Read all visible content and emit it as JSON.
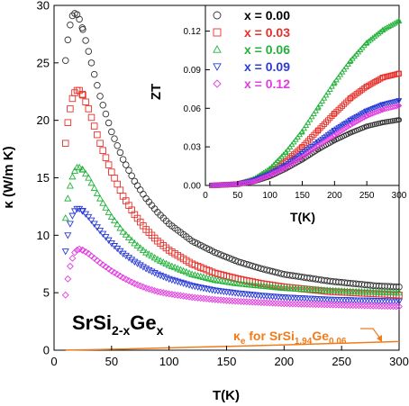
{
  "chart_data": [
    {
      "id": "main",
      "type": "scatter",
      "xlabel": "T(K)",
      "ylabel": "κ (W/m K)",
      "xlim": [
        0,
        300
      ],
      "ylim": [
        0,
        30
      ],
      "xticks": [
        "0",
        "50",
        "100",
        "150",
        "200",
        "250",
        "300"
      ],
      "yticks": [
        "0",
        "5",
        "10",
        "15",
        "20",
        "25",
        "30"
      ],
      "grid": false,
      "compound_label": {
        "base": "SrSi",
        "sub": "2-x",
        "mid": "Ge",
        "sub2": "x"
      },
      "series": [
        {
          "x_label": "x = 0.00",
          "color": "#333333",
          "marker": "circle",
          "points": [
            [
              10,
              25.2
            ],
            [
              12,
              27
            ],
            [
              14,
              28.3
            ],
            [
              16,
              29.1
            ],
            [
              18,
              29.3
            ],
            [
              20,
              29.2
            ],
            [
              22,
              28.8
            ],
            [
              25,
              27.9
            ],
            [
              30,
              26.0
            ],
            [
              35,
              24.0
            ],
            [
              40,
              22.1
            ],
            [
              50,
              19.0
            ],
            [
              60,
              16.6
            ],
            [
              70,
              14.7
            ],
            [
              80,
              13.2
            ],
            [
              90,
              12.0
            ],
            [
              100,
              11.0
            ],
            [
              120,
              9.5
            ],
            [
              140,
              8.5
            ],
            [
              160,
              7.7
            ],
            [
              180,
              7.1
            ],
            [
              200,
              6.6
            ],
            [
              220,
              6.3
            ],
            [
              240,
              6.0
            ],
            [
              260,
              5.8
            ],
            [
              280,
              5.6
            ],
            [
              300,
              5.5
            ]
          ]
        },
        {
          "x_label": "x = 0.03",
          "color": "#e8302a",
          "marker": "square",
          "points": [
            [
              10,
              18.0
            ],
            [
              12,
              19.8
            ],
            [
              14,
              21.0
            ],
            [
              16,
              21.9
            ],
            [
              18,
              22.4
            ],
            [
              20,
              22.6
            ],
            [
              22,
              22.6
            ],
            [
              25,
              22.2
            ],
            [
              30,
              21.0
            ],
            [
              35,
              19.5
            ],
            [
              40,
              18.0
            ],
            [
              50,
              15.5
            ],
            [
              60,
              13.4
            ],
            [
              70,
              11.8
            ],
            [
              80,
              10.5
            ],
            [
              90,
              9.5
            ],
            [
              100,
              8.7
            ],
            [
              120,
              7.5
            ],
            [
              140,
              6.7
            ],
            [
              160,
              6.2
            ],
            [
              180,
              5.8
            ],
            [
              200,
              5.5
            ],
            [
              220,
              5.3
            ],
            [
              240,
              5.1
            ],
            [
              260,
              5.0
            ],
            [
              280,
              4.9
            ],
            [
              300,
              4.8
            ]
          ]
        },
        {
          "x_label": "x = 0.06",
          "color": "#22b23a",
          "marker": "triangle-up",
          "points": [
            [
              10,
              11.5
            ],
            [
              12,
              13.2
            ],
            [
              14,
              14.3
            ],
            [
              16,
              15.1
            ],
            [
              18,
              15.6
            ],
            [
              20,
              15.9
            ],
            [
              22,
              15.9
            ],
            [
              25,
              15.7
            ],
            [
              30,
              15.0
            ],
            [
              35,
              14.1
            ],
            [
              40,
              13.2
            ],
            [
              50,
              11.6
            ],
            [
              60,
              10.3
            ],
            [
              70,
              9.3
            ],
            [
              80,
              8.5
            ],
            [
              90,
              7.9
            ],
            [
              100,
              7.4
            ],
            [
              120,
              6.6
            ],
            [
              140,
              6.1
            ],
            [
              160,
              5.8
            ],
            [
              180,
              5.6
            ],
            [
              200,
              5.4
            ],
            [
              220,
              5.3
            ],
            [
              240,
              5.2
            ],
            [
              260,
              5.1
            ],
            [
              280,
              5.05
            ],
            [
              300,
              5.0
            ]
          ]
        },
        {
          "x_label": "x = 0.09",
          "color": "#2a3bd6",
          "marker": "triangle-down",
          "points": [
            [
              10,
              8.6
            ],
            [
              12,
              10.0
            ],
            [
              14,
              11.0
            ],
            [
              16,
              11.7
            ],
            [
              18,
              12.1
            ],
            [
              20,
              12.3
            ],
            [
              22,
              12.3
            ],
            [
              25,
              12.1
            ],
            [
              30,
              11.6
            ],
            [
              35,
              11.0
            ],
            [
              40,
              10.4
            ],
            [
              50,
              9.3
            ],
            [
              60,
              8.4
            ],
            [
              70,
              7.7
            ],
            [
              80,
              7.1
            ],
            [
              90,
              6.6
            ],
            [
              100,
              6.2
            ],
            [
              120,
              5.6
            ],
            [
              140,
              5.2
            ],
            [
              160,
              4.95
            ],
            [
              180,
              4.75
            ],
            [
              200,
              4.6
            ],
            [
              220,
              4.5
            ],
            [
              240,
              4.4
            ],
            [
              260,
              4.35
            ],
            [
              280,
              4.3
            ],
            [
              300,
              4.25
            ]
          ]
        },
        {
          "x_label": "x = 0.12",
          "color": "#e23be0",
          "marker": "diamond",
          "points": [
            [
              10,
              4.8
            ],
            [
              12,
              6.2
            ],
            [
              14,
              7.3
            ],
            [
              16,
              8.0
            ],
            [
              18,
              8.5
            ],
            [
              20,
              8.7
            ],
            [
              22,
              8.8
            ],
            [
              25,
              8.7
            ],
            [
              30,
              8.4
            ],
            [
              35,
              8.0
            ],
            [
              40,
              7.6
            ],
            [
              50,
              6.9
            ],
            [
              60,
              6.3
            ],
            [
              70,
              5.8
            ],
            [
              80,
              5.4
            ],
            [
              90,
              5.1
            ],
            [
              100,
              4.9
            ],
            [
              120,
              4.6
            ],
            [
              140,
              4.4
            ],
            [
              160,
              4.25
            ],
            [
              180,
              4.15
            ],
            [
              200,
              4.05
            ],
            [
              220,
              4.0
            ],
            [
              240,
              3.95
            ],
            [
              260,
              3.9
            ],
            [
              280,
              3.85
            ],
            [
              300,
              3.8
            ]
          ]
        }
      ],
      "ke_curve": {
        "label_prefix": "κ",
        "label_prefix_sub": "e",
        "label_mid": " for SrSi",
        "label_sub1": "1.94",
        "label_mid2": "Ge",
        "label_sub2": "0.06",
        "color": "#f07c1c",
        "points": [
          [
            10,
            0.01
          ],
          [
            30,
            0.04
          ],
          [
            60,
            0.1
          ],
          [
            100,
            0.2
          ],
          [
            150,
            0.33
          ],
          [
            200,
            0.46
          ],
          [
            250,
            0.6
          ],
          [
            300,
            0.75
          ]
        ]
      }
    },
    {
      "id": "inset",
      "type": "scatter",
      "xlabel": "T(K)",
      "ylabel": "ZT",
      "xlim": [
        0,
        300
      ],
      "ylim": [
        0,
        0.14
      ],
      "xticks": [
        "0",
        "50",
        "100",
        "150",
        "200",
        "250",
        "300"
      ],
      "yticks": [
        "0.00",
        "0.03",
        "0.06",
        "0.09",
        "0.12"
      ],
      "grid": false,
      "legend": {
        "placement": "top-left",
        "entries": [
          {
            "label": "x = 0.00",
            "color": "#000000",
            "marker_color": "#333333",
            "marker": "circle"
          },
          {
            "label": "x = 0.03",
            "color": "#e8302a",
            "marker_color": "#e8302a",
            "marker": "square"
          },
          {
            "label": "x = 0.06",
            "color": "#22b23a",
            "marker_color": "#22b23a",
            "marker": "triangle-up"
          },
          {
            "label": "x = 0.09",
            "color": "#2a3bd6",
            "marker_color": "#2a3bd6",
            "marker": "triangle-down"
          },
          {
            "label": "x = 0.12",
            "color": "#e23be0",
            "marker_color": "#e23be0",
            "marker": "diamond"
          }
        ]
      },
      "series": [
        {
          "x_label": "x = 0.00",
          "color": "#333333",
          "marker": "circle",
          "points": [
            [
              10,
              0.0
            ],
            [
              50,
              0.001
            ],
            [
              75,
              0.003
            ],
            [
              100,
              0.007
            ],
            [
              125,
              0.013
            ],
            [
              150,
              0.02
            ],
            [
              175,
              0.028
            ],
            [
              200,
              0.035
            ],
            [
              225,
              0.041
            ],
            [
              250,
              0.046
            ],
            [
              275,
              0.049
            ],
            [
              300,
              0.051
            ]
          ]
        },
        {
          "x_label": "x = 0.03",
          "color": "#e8302a",
          "marker": "square",
          "points": [
            [
              10,
              0.0
            ],
            [
              50,
              0.001
            ],
            [
              75,
              0.004
            ],
            [
              100,
              0.01
            ],
            [
              125,
              0.019
            ],
            [
              150,
              0.03
            ],
            [
              175,
              0.043
            ],
            [
              200,
              0.056
            ],
            [
              225,
              0.068
            ],
            [
              250,
              0.077
            ],
            [
              275,
              0.084
            ],
            [
              300,
              0.087
            ]
          ]
        },
        {
          "x_label": "x = 0.06",
          "color": "#22b23a",
          "marker": "triangle-up",
          "points": [
            [
              10,
              0.0
            ],
            [
              50,
              0.001
            ],
            [
              75,
              0.005
            ],
            [
              100,
              0.013
            ],
            [
              125,
              0.026
            ],
            [
              150,
              0.042
            ],
            [
              175,
              0.061
            ],
            [
              200,
              0.08
            ],
            [
              225,
              0.097
            ],
            [
              250,
              0.111
            ],
            [
              275,
              0.121
            ],
            [
              300,
              0.128
            ]
          ]
        },
        {
          "x_label": "x = 0.09",
          "color": "#2a3bd6",
          "marker": "triangle-down",
          "points": [
            [
              10,
              0.0
            ],
            [
              50,
              0.001
            ],
            [
              75,
              0.004
            ],
            [
              100,
              0.009
            ],
            [
              125,
              0.016
            ],
            [
              150,
              0.025
            ],
            [
              175,
              0.034
            ],
            [
              200,
              0.043
            ],
            [
              225,
              0.051
            ],
            [
              250,
              0.058
            ],
            [
              275,
              0.063
            ],
            [
              300,
              0.066
            ]
          ]
        },
        {
          "x_label": "x = 0.12",
          "color": "#e23be0",
          "marker": "diamond",
          "points": [
            [
              10,
              0.0
            ],
            [
              50,
              0.001
            ],
            [
              75,
              0.003
            ],
            [
              100,
              0.008
            ],
            [
              125,
              0.014
            ],
            [
              150,
              0.022
            ],
            [
              175,
              0.031
            ],
            [
              200,
              0.039
            ],
            [
              225,
              0.047
            ],
            [
              250,
              0.054
            ],
            [
              275,
              0.059
            ],
            [
              300,
              0.062
            ]
          ]
        }
      ]
    }
  ]
}
